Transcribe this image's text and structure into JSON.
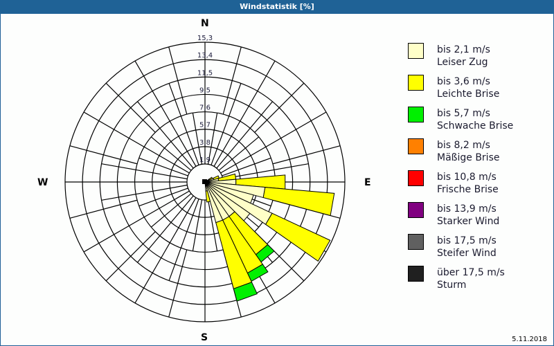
{
  "window": {
    "title": "Windstatistik [%]"
  },
  "compass": {
    "north": "N",
    "east": "E",
    "south": "S",
    "west": "W"
  },
  "footer": {
    "date": "5.11.2018"
  },
  "legend": [
    {
      "line1": "bis 2,1 m/s",
      "line2": "Leiser Zug",
      "color": "#ffffc8"
    },
    {
      "line1": "bis 3,6 m/s",
      "line2": "Leichte Brise",
      "color": "#ffff00"
    },
    {
      "line1": "bis 5,7 m/s",
      "line2": "Schwache Brise",
      "color": "#00f000"
    },
    {
      "line1": "bis 8,2 m/s",
      "line2": "Mäßige Brise",
      "color": "#ff8000"
    },
    {
      "line1": "bis 10,8 m/s",
      "line2": "Frische Brise",
      "color": "#ff0000"
    },
    {
      "line1": "bis 13,9 m/s",
      "line2": "Starker Wind",
      "color": "#800080"
    },
    {
      "line1": "bis 17,5 m/s",
      "line2": "Steifer Wind",
      "color": "#606060"
    },
    {
      "line1": "über 17,5 m/s",
      "line2": "Sturm",
      "color": "#202020"
    }
  ],
  "chart_data": {
    "type": "polar-stacked-bar (wind rose)",
    "title": "Windstatistik [%]",
    "radial_unit": "%",
    "radial_ticks": [
      "1,9",
      "3,8",
      "5,7",
      "7,6",
      "9,5",
      "11,5",
      "13,4",
      "15,3"
    ],
    "radial_max": 15.3,
    "sector_width_deg": 10,
    "directions_deg": [
      60,
      70,
      80,
      90,
      100,
      110,
      120,
      130,
      140,
      150,
      160,
      170
    ],
    "series": [
      {
        "name": "bis 2,1 m/s (Leiser Zug)",
        "color": "#ffffc8",
        "values": [
          0.5,
          1.0,
          1.5,
          3.4,
          6.6,
          5.5,
          8.1,
          6.0,
          4.6,
          4.6,
          4.6,
          1.0
        ]
      },
      {
        "name": "bis 3,6 m/s (Leichte Brise)",
        "color": "#ffff00",
        "values": [
          0.4,
          0.6,
          1.9,
          5.4,
          7.6,
          0.0,
          7.0,
          0.0,
          5.1,
          6.4,
          7.5,
          1.2
        ]
      },
      {
        "name": "bis 5,7 m/s (Schwache Brise)",
        "color": "#00f000",
        "values": [
          0,
          0,
          0,
          0,
          0,
          0,
          0,
          0,
          1.0,
          1.0,
          1.4,
          0
        ]
      },
      {
        "name": "bis 8,2 m/s (Mäßige Brise)",
        "color": "#ff8000",
        "values": [
          0,
          0,
          0,
          0,
          0,
          0,
          0,
          0,
          0,
          0,
          0,
          0
        ]
      },
      {
        "name": "bis 10,8 m/s (Frische Brise)",
        "color": "#ff0000",
        "values": [
          0,
          0,
          0,
          0,
          0,
          0,
          0,
          0,
          0,
          0,
          0,
          0
        ]
      },
      {
        "name": "bis 13,9 m/s (Starker Wind)",
        "color": "#800080",
        "values": [
          0,
          0,
          0,
          0,
          0,
          0,
          0,
          0,
          0,
          0,
          0,
          0
        ]
      },
      {
        "name": "bis 17,5 m/s (Steifer Wind)",
        "color": "#606060",
        "values": [
          0,
          0,
          0,
          0,
          0,
          0,
          0,
          0,
          0,
          0,
          0,
          0
        ]
      },
      {
        "name": "über 17,5 m/s (Sturm)",
        "color": "#202020",
        "values": [
          0,
          0,
          0,
          0,
          0,
          0,
          0,
          0,
          0,
          0,
          0,
          0
        ]
      }
    ],
    "legend_position": "right",
    "grid": true
  }
}
